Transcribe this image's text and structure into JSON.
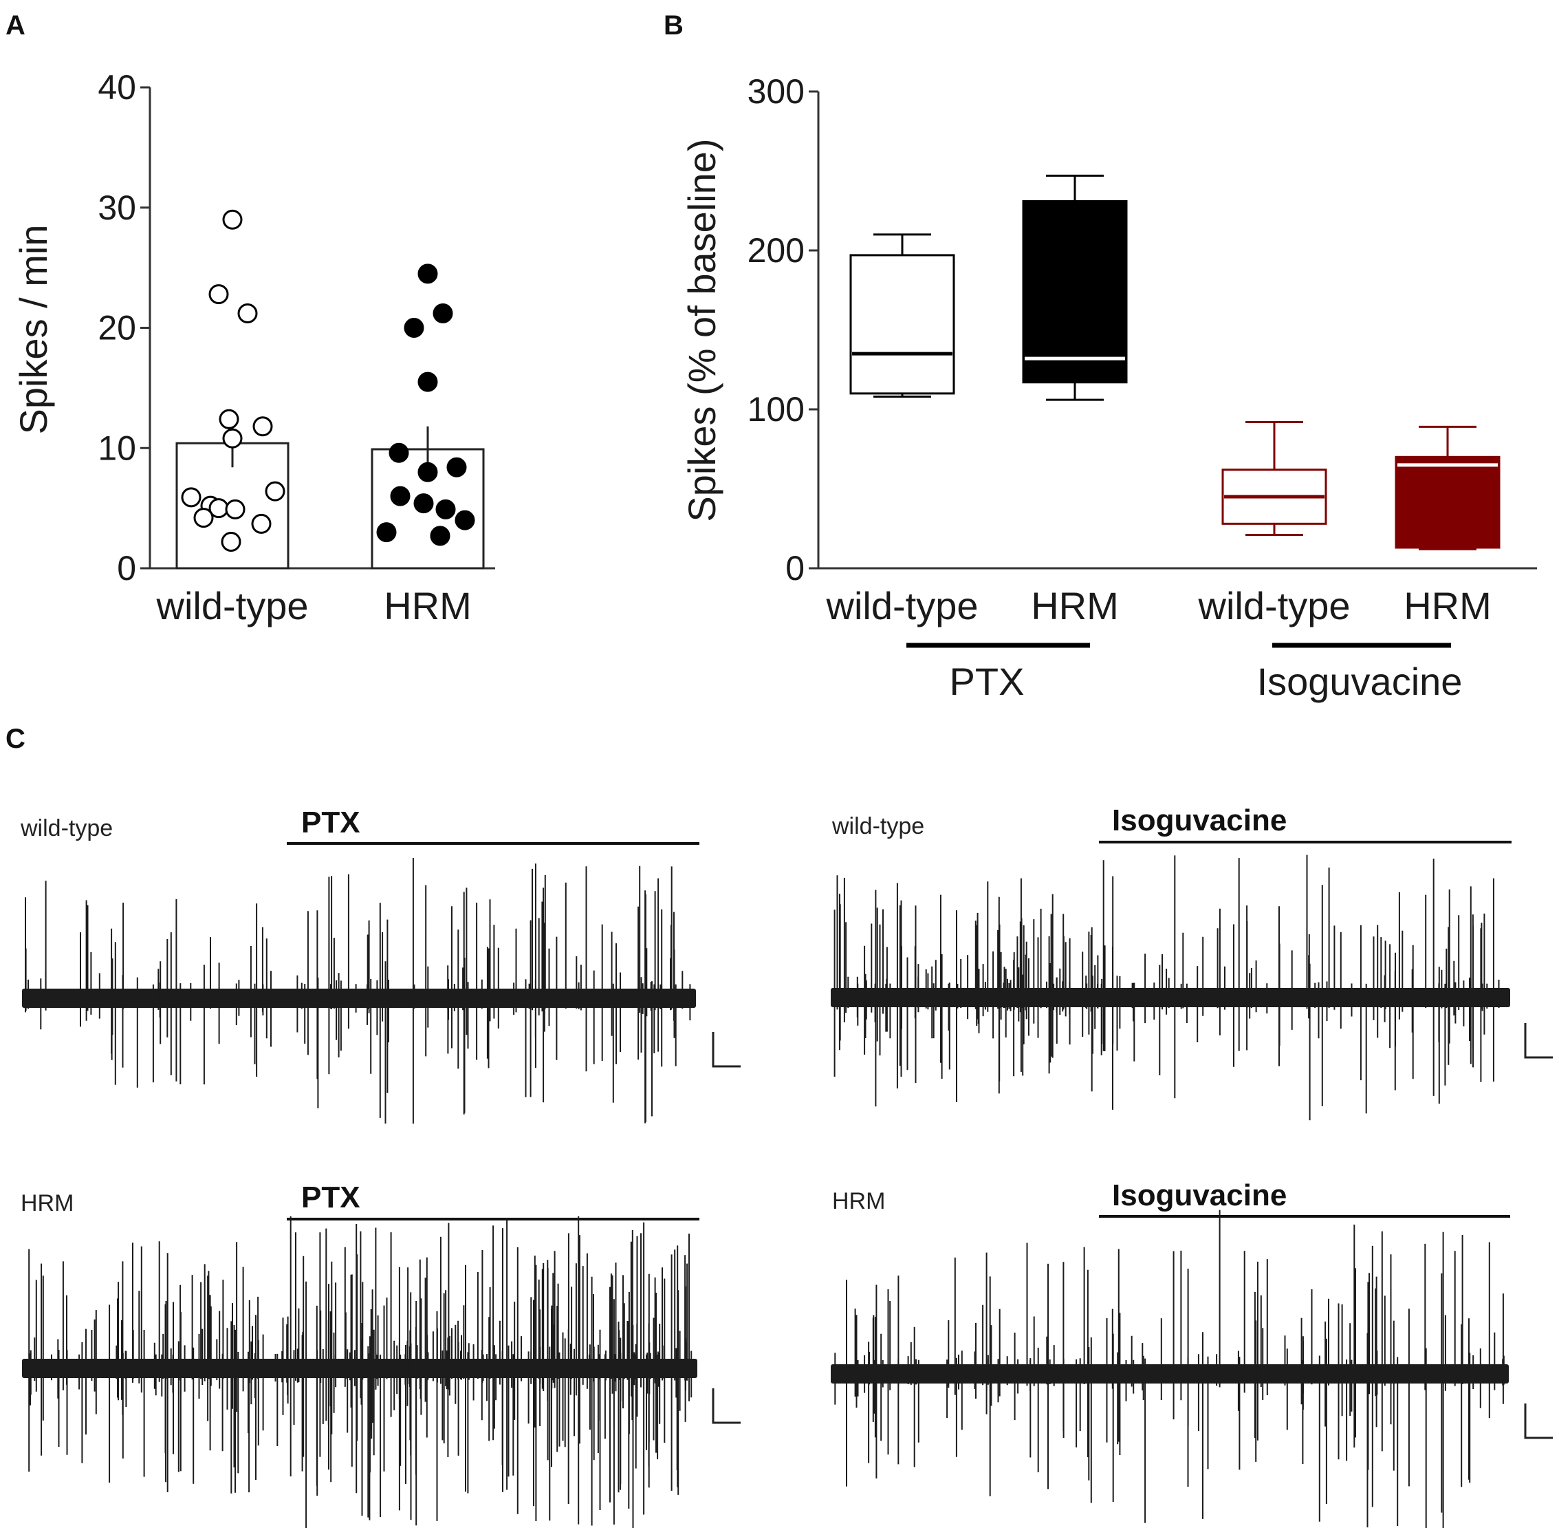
{
  "panels": {
    "a": "A",
    "b": "B",
    "c": "C"
  },
  "colors": {
    "black": "#000000",
    "dark_red": "#7f0000"
  },
  "chart_data": [
    {
      "type": "bar",
      "id": "A",
      "categories": [
        "wild-type",
        "HRM"
      ],
      "values": [
        10.4,
        9.9
      ],
      "sem": [
        2.0,
        1.9
      ],
      "ylabel": "Spikes / min",
      "ylim": [
        0,
        40
      ],
      "yticks": [
        0,
        10,
        20,
        30,
        40
      ],
      "points": [
        [
          29.0,
          22.8,
          21.2,
          12.4,
          11.8,
          10.8,
          6.4,
          5.9,
          5.2,
          5.0,
          4.9,
          4.2,
          3.7,
          2.2
        ],
        [
          24.5,
          21.2,
          20.0,
          15.5,
          9.6,
          8.4,
          8.0,
          6.0,
          5.4,
          4.9,
          4.0,
          3.0,
          2.7
        ]
      ],
      "point_fill": [
        "#ffffff",
        "#000000"
      ]
    },
    {
      "type": "box",
      "id": "B",
      "ylabel": "Spikes (% of baseline)",
      "ylim": [
        0,
        300
      ],
      "yticks": [
        0,
        100,
        200,
        300
      ],
      "groups": [
        {
          "label": "wild-type",
          "treatment": "PTX",
          "min": 108,
          "q1": 110,
          "median": 135,
          "q3": 197,
          "max": 210,
          "fill": "#ffffff",
          "stroke": "#000000"
        },
        {
          "label": "HRM",
          "treatment": "PTX",
          "min": 106,
          "q1": 117,
          "median": 132,
          "q3": 231,
          "max": 247,
          "fill": "#000000",
          "stroke": "#000000"
        },
        {
          "label": "wild-type",
          "treatment": "Isoguvacine",
          "min": 21,
          "q1": 28,
          "median": 45,
          "q3": 62,
          "max": 92,
          "fill": "#ffffff",
          "stroke": "#7f0000"
        },
        {
          "label": "HRM",
          "treatment": "Isoguvacine",
          "min": 12,
          "q1": 13,
          "median": 65,
          "q3": 70,
          "max": 89,
          "fill": "#7f0000",
          "stroke": "#7f0000"
        }
      ],
      "treatments": [
        "PTX",
        "Isoguvacine"
      ]
    }
  ],
  "traces": [
    {
      "label": "wild-type",
      "drug": "PTX"
    },
    {
      "label": "wild-type",
      "drug": "Isoguvacine"
    },
    {
      "label": "HRM",
      "drug": "PTX"
    },
    {
      "label": "HRM",
      "drug": "Isoguvacine"
    }
  ]
}
